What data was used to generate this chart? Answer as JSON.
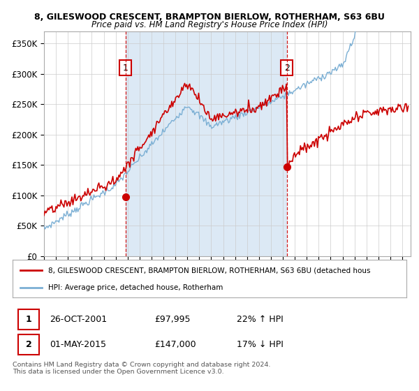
{
  "title_line1": "8, GILESWOOD CRESCENT, BRAMPTON BIERLOW, ROTHERHAM, S63 6BU",
  "title_line2": "Price paid vs. HM Land Registry's House Price Index (HPI)",
  "ylabel_ticks": [
    "£0",
    "£50K",
    "£100K",
    "£150K",
    "£200K",
    "£250K",
    "£300K",
    "£350K"
  ],
  "ytick_values": [
    0,
    50000,
    100000,
    150000,
    200000,
    250000,
    300000,
    350000
  ],
  "ylim": [
    0,
    370000
  ],
  "xlim_start": 1995.0,
  "xlim_end": 2025.7,
  "hpi_color": "#7bafd4",
  "price_color": "#cc0000",
  "shade_color": "#dce9f5",
  "marker1_x": 2001.82,
  "marker1_y": 97995,
  "marker2_x": 2015.33,
  "marker2_y": 147000,
  "legend_label1": "8, GILESWOOD CRESCENT, BRAMPTON BIERLOW, ROTHERHAM, S63 6BU (detached hous",
  "legend_label2": "HPI: Average price, detached house, Rotherham",
  "table_row1": [
    "1",
    "26-OCT-2001",
    "£97,995",
    "22% ↑ HPI"
  ],
  "table_row2": [
    "2",
    "01-MAY-2015",
    "£147,000",
    "17% ↓ HPI"
  ],
  "footer": "Contains HM Land Registry data © Crown copyright and database right 2024.\nThis data is licensed under the Open Government Licence v3.0.",
  "grid_color": "#cccccc"
}
